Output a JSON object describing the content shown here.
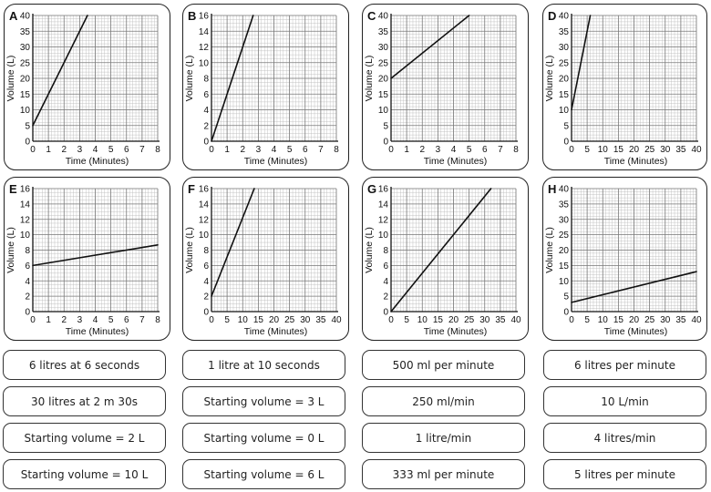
{
  "chart_data": [
    {
      "id": "A",
      "type": "line",
      "letter": "A",
      "xlabel": "Time (Minutes)",
      "ylabel": "Volume (L)",
      "x_ticks": [
        "0",
        "1",
        "2",
        "3",
        "4",
        "5",
        "6",
        "7",
        "8"
      ],
      "y_ticks": [
        "0",
        "5",
        "10",
        "15",
        "20",
        "25",
        "30",
        "35",
        "40"
      ],
      "xlim": [
        0,
        8
      ],
      "ylim": [
        0,
        40
      ],
      "x_minor": 5,
      "y_minor": 5,
      "line": {
        "x": [
          0,
          3.5
        ],
        "y": [
          5,
          40
        ]
      }
    },
    {
      "id": "B",
      "type": "line",
      "letter": "B",
      "xlabel": "Time (Minutes)",
      "ylabel": "Volume (L)",
      "x_ticks": [
        "0",
        "1",
        "2",
        "3",
        "4",
        "5",
        "6",
        "7",
        "8"
      ],
      "y_ticks": [
        "0",
        "2",
        "4",
        "6",
        "8",
        "10",
        "12",
        "14",
        "16"
      ],
      "xlim": [
        0,
        8
      ],
      "ylim": [
        0,
        16
      ],
      "x_minor": 5,
      "y_minor": 4,
      "line": {
        "x": [
          0,
          2.67
        ],
        "y": [
          0,
          16
        ]
      }
    },
    {
      "id": "C",
      "type": "line",
      "letter": "C",
      "xlabel": "Time (Minutes)",
      "ylabel": "Volume (L)",
      "x_ticks": [
        "0",
        "1",
        "2",
        "3",
        "4",
        "5",
        "6",
        "7",
        "8"
      ],
      "y_ticks": [
        "0",
        "5",
        "10",
        "15",
        "20",
        "25",
        "30",
        "35",
        "40"
      ],
      "xlim": [
        0,
        8
      ],
      "ylim": [
        0,
        40
      ],
      "x_minor": 5,
      "y_minor": 5,
      "line": {
        "x": [
          0,
          5
        ],
        "y": [
          20,
          40
        ]
      }
    },
    {
      "id": "D",
      "type": "line",
      "letter": "D",
      "xlabel": "Time (Minutes)",
      "ylabel": "Volume (L)",
      "x_ticks": [
        "0",
        "5",
        "10",
        "15",
        "20",
        "25",
        "30",
        "35",
        "40"
      ],
      "y_ticks": [
        "0",
        "5",
        "10",
        "15",
        "20",
        "25",
        "30",
        "35",
        "40"
      ],
      "xlim": [
        0,
        40
      ],
      "ylim": [
        0,
        40
      ],
      "x_minor": 5,
      "y_minor": 5,
      "line": {
        "x": [
          0,
          6
        ],
        "y": [
          10,
          40
        ]
      }
    },
    {
      "id": "E",
      "type": "line",
      "letter": "E",
      "xlabel": "Time (Minutes)",
      "ylabel": "Volume (L)",
      "x_ticks": [
        "0",
        "1",
        "2",
        "3",
        "4",
        "5",
        "6",
        "7",
        "8"
      ],
      "y_ticks": [
        "0",
        "2",
        "4",
        "6",
        "8",
        "10",
        "12",
        "14",
        "16"
      ],
      "xlim": [
        0,
        8
      ],
      "ylim": [
        0,
        16
      ],
      "x_minor": 5,
      "y_minor": 4,
      "line": {
        "x": [
          0,
          8
        ],
        "y": [
          6,
          8.67
        ]
      }
    },
    {
      "id": "F",
      "type": "line",
      "letter": "F",
      "xlabel": "Time (Minutes)",
      "ylabel": "Volume (L)",
      "x_ticks": [
        "0",
        "5",
        "10",
        "15",
        "20",
        "25",
        "30",
        "35",
        "40"
      ],
      "y_ticks": [
        "0",
        "2",
        "4",
        "6",
        "8",
        "10",
        "12",
        "14",
        "16"
      ],
      "xlim": [
        0,
        40
      ],
      "ylim": [
        0,
        16
      ],
      "x_minor": 5,
      "y_minor": 4,
      "line": {
        "x": [
          0,
          13.7
        ],
        "y": [
          2,
          16
        ]
      }
    },
    {
      "id": "G",
      "type": "line",
      "letter": "G",
      "xlabel": "Time (Minutes)",
      "ylabel": "Volume (L)",
      "x_ticks": [
        "0",
        "5",
        "10",
        "15",
        "20",
        "25",
        "30",
        "35",
        "40"
      ],
      "y_ticks": [
        "0",
        "2",
        "4",
        "6",
        "8",
        "10",
        "12",
        "14",
        "16"
      ],
      "xlim": [
        0,
        40
      ],
      "ylim": [
        0,
        16
      ],
      "x_minor": 5,
      "y_minor": 4,
      "line": {
        "x": [
          0,
          32
        ],
        "y": [
          0,
          16
        ]
      }
    },
    {
      "id": "H",
      "type": "line",
      "letter": "H",
      "xlabel": "Time (Minutes)",
      "ylabel": "Volume (L)",
      "x_ticks": [
        "0",
        "5",
        "10",
        "15",
        "20",
        "25",
        "30",
        "35",
        "40"
      ],
      "y_ticks": [
        "0",
        "5",
        "10",
        "15",
        "20",
        "25",
        "30",
        "35",
        "40"
      ],
      "xlim": [
        0,
        40
      ],
      "ylim": [
        0,
        40
      ],
      "x_minor": 5,
      "y_minor": 5,
      "line": {
        "x": [
          0,
          40
        ],
        "y": [
          3,
          13
        ]
      }
    }
  ],
  "cards": [
    [
      "6 litres at 6 seconds",
      "1 litre at 10 seconds",
      "500 ml per minute",
      "6 litres per minute"
    ],
    [
      "30 litres at 2 m 30s",
      "Starting volume = 3 L",
      "250 ml/min",
      "10 L/min"
    ],
    [
      "Starting volume = 2 L",
      "Starting volume = 0 L",
      "1 litre/min",
      "4 litres/min"
    ],
    [
      "Starting volume = 10 L",
      "Starting volume = 6 L",
      "333 ml per minute",
      "5 litres per minute"
    ]
  ]
}
